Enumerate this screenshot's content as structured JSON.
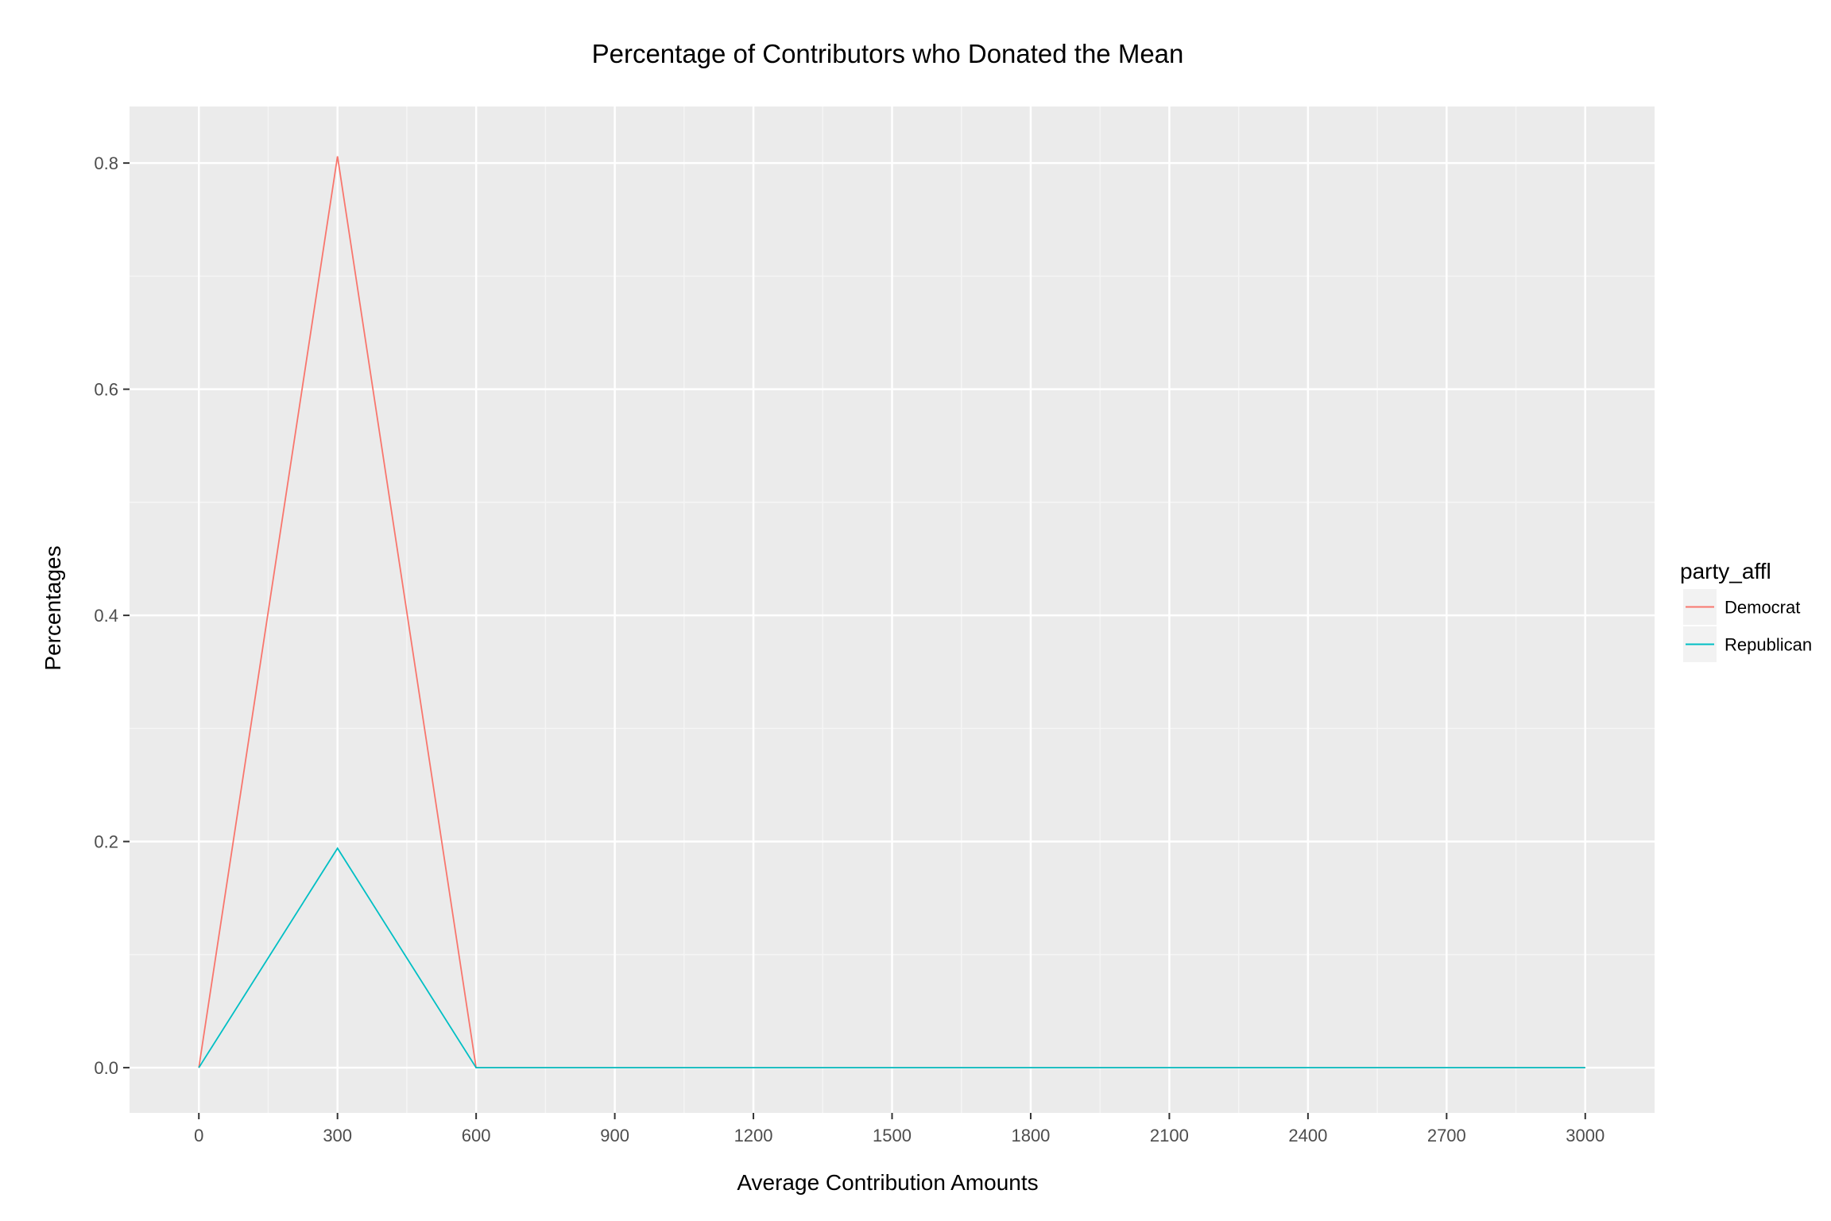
{
  "chart_data": {
    "type": "line",
    "title": "Percentage of Contributors who Donated the Mean",
    "xlabel": "Average Contribution Amounts",
    "ylabel": "Percentages",
    "xlim": [
      -150,
      3150
    ],
    "ylim": [
      -0.04,
      0.85
    ],
    "x_ticks": [
      0,
      300,
      600,
      900,
      1200,
      1500,
      1800,
      2100,
      2400,
      2700,
      3000
    ],
    "x_tick_labels": [
      "0",
      "300",
      "600",
      "900",
      "1200",
      "1500",
      "1800",
      "2100",
      "2400",
      "2700",
      "3000"
    ],
    "y_ticks": [
      0.0,
      0.2,
      0.4,
      0.6,
      0.8
    ],
    "y_tick_labels": [
      "0.0",
      "0.2",
      "0.4",
      "0.6",
      "0.8"
    ],
    "grid": true,
    "legend": {
      "title": "party_affl",
      "position": "right"
    },
    "series": [
      {
        "name": "Democrat",
        "color": "#F8766D",
        "points": [
          [
            0,
            0.0
          ],
          [
            300,
            0.806
          ],
          [
            600,
            0.0
          ],
          [
            900,
            0.0
          ],
          [
            1200,
            0.0
          ],
          [
            1500,
            0.0
          ],
          [
            1800,
            0.0
          ],
          [
            2100,
            0.0
          ],
          [
            2400,
            0.0
          ],
          [
            2700,
            0.0
          ],
          [
            3000,
            0.0
          ]
        ]
      },
      {
        "name": "Republican",
        "color": "#00BFC4",
        "points": [
          [
            0,
            0.0
          ],
          [
            300,
            0.194
          ],
          [
            600,
            0.0
          ],
          [
            900,
            0.0
          ],
          [
            1200,
            0.0
          ],
          [
            1500,
            0.0
          ],
          [
            1800,
            0.0
          ],
          [
            2100,
            0.0
          ],
          [
            2400,
            0.0
          ],
          [
            2700,
            0.0
          ],
          [
            3000,
            0.0
          ]
        ]
      }
    ],
    "colors": {
      "panel_background": "#EBEBEB",
      "grid_major": "#FFFFFF",
      "grid_minor": "#F5F5F5"
    }
  }
}
